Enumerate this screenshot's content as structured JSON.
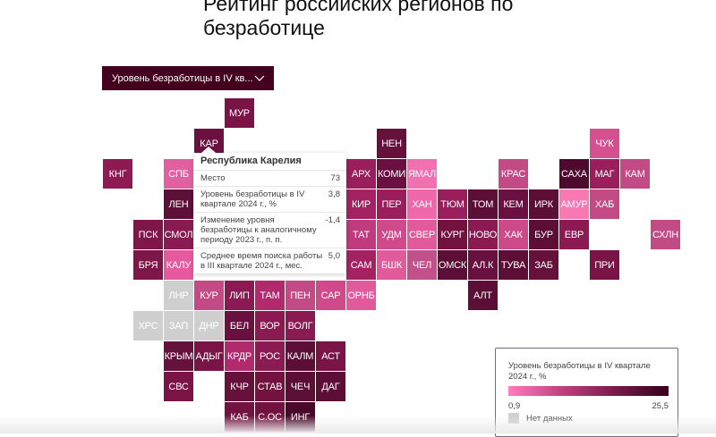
{
  "title": "Рейтинг российских регионов по безработице",
  "dropdown": {
    "label": "Уровень безработицы в IV кв...",
    "icon": "chevron-down-icon"
  },
  "tooltip": {
    "region": "Республика Карелия",
    "rows": [
      {
        "label": "Место",
        "value": "73"
      },
      {
        "label": "Уровень безработицы в IV квартале 2024 г., %",
        "value": "3,8"
      },
      {
        "label": "Изменение уровня безработицы к аналогичному периоду 2023 г., п. п.",
        "value": "-1,4"
      },
      {
        "label": "Среднее время поиска работы в III квартале 2024 г.,  мес.",
        "value": "5,0"
      }
    ]
  },
  "legend": {
    "title": "Уровень безработицы в IV квартале 2024 г., %",
    "min": "0,9",
    "max": "25,5",
    "no_data": "Нет данных",
    "color_low": "#ff7dbf",
    "color_high": "#33001a",
    "color_no_data": "#cfcfcf"
  },
  "tiles": [
    {
      "label": "МУР",
      "color": "#7a1447"
    },
    {
      "label": "КАР",
      "color": "#6b1040"
    },
    {
      "label": "КНГ",
      "color": "#8e1a54"
    },
    {
      "label": "СПБ",
      "color": "#e060a0"
    },
    {
      "label": "ЛЕН",
      "color": "#5e0f38"
    },
    {
      "label": "СМОЛ",
      "color": "#8a1a52"
    },
    {
      "label": "КАЛУ",
      "color": "#e55a9e"
    },
    {
      "label": "ПСК",
      "color": "#7e164a"
    },
    {
      "label": "БРЯ",
      "color": "#7e164a"
    },
    {
      "label": "НЕН",
      "color": "#66103c"
    },
    {
      "label": "КОМИ",
      "color": "#6a1040"
    },
    {
      "label": "ЯМАЛ",
      "color": "#f070b0"
    },
    {
      "label": "ПЕР",
      "color": "#9a1e5c"
    },
    {
      "label": "ХАН",
      "color": "#f068ac"
    },
    {
      "label": "ТЮМ",
      "color": "#9a1e5c"
    },
    {
      "label": "ТОМ",
      "color": "#5c0e36"
    },
    {
      "label": "КЕМ",
      "color": "#6a1040"
    },
    {
      "label": "ИРК",
      "color": "#5c0e36"
    },
    {
      "label": "АМУР",
      "color": "#f878b4"
    },
    {
      "label": "ХАБ",
      "color": "#c24b85"
    },
    {
      "label": "КРАС",
      "color": "#c24b85"
    },
    {
      "label": "САХА",
      "color": "#4d0a2e"
    },
    {
      "label": "МАГ",
      "color": "#9a1e5c"
    },
    {
      "label": "КАМ",
      "color": "#c24b85"
    },
    {
      "label": "ЧУК",
      "color": "#d4508f"
    },
    {
      "label": "УДМ",
      "color": "#d04a8b"
    },
    {
      "label": "СВЕР",
      "color": "#e05a9c"
    },
    {
      "label": "КУРГ",
      "color": "#74123f"
    },
    {
      "label": "НОВО",
      "color": "#8c1a52"
    },
    {
      "label": "ХАК",
      "color": "#cc4a8a"
    },
    {
      "label": "БУР",
      "color": "#5c0e36"
    },
    {
      "label": "ЕВР",
      "color": "#8c1a52"
    },
    {
      "label": "СХЛН",
      "color": "#c24b85"
    },
    {
      "label": "БШК",
      "color": "#e05a9c"
    },
    {
      "label": "ЧЕЛ",
      "color": "#c2508a"
    },
    {
      "label": "ОМСК",
      "color": "#5c0e36"
    },
    {
      "label": "АЛ.К",
      "color": "#6a1040"
    },
    {
      "label": "ТУВА",
      "color": "#5c0e36"
    },
    {
      "label": "ЗАБ",
      "color": "#66103c"
    },
    {
      "label": "ПРИ",
      "color": "#7a1447"
    },
    {
      "label": "АЛТ",
      "color": "#5c0e36"
    },
    {
      "label": "АРХ",
      "color": "#9a1e5c"
    },
    {
      "label": "КИР",
      "color": "#a52262"
    },
    {
      "label": "ТАТ",
      "color": "#c03a7e"
    },
    {
      "label": "САМ",
      "color": "#a52262"
    },
    {
      "label": "ЛНР",
      "color": "#cfcfcf"
    },
    {
      "label": "КУР",
      "color": "#c24b85"
    },
    {
      "label": "ЛИП",
      "color": "#8c1a52"
    },
    {
      "label": "ТАМ",
      "color": "#b02a6c"
    },
    {
      "label": "ПЕН",
      "color": "#c24b85"
    },
    {
      "label": "САР",
      "color": "#d04a8b"
    },
    {
      "label": "ОРНБ",
      "color": "#e05a9c"
    },
    {
      "label": "ХРС",
      "color": "#cfcfcf"
    },
    {
      "label": "ЗАП",
      "color": "#cfcfcf"
    },
    {
      "label": "ДНР",
      "color": "#cfcfcf"
    },
    {
      "label": "БЕЛ",
      "color": "#6a1040"
    },
    {
      "label": "ВОР",
      "color": "#8c1a52"
    },
    {
      "label": "ВОЛГ",
      "color": "#8c1a52"
    },
    {
      "label": "КРЫМ",
      "color": "#66103c"
    },
    {
      "label": "АДЫГ",
      "color": "#7a1447"
    },
    {
      "label": "КРДР",
      "color": "#b02a6c"
    },
    {
      "label": "РОС",
      "color": "#8c1a52"
    },
    {
      "label": "КАЛМ",
      "color": "#5c0e36"
    },
    {
      "label": "АСТ",
      "color": "#7a1447"
    },
    {
      "label": "СВС",
      "color": "#7a1447"
    },
    {
      "label": "КЧР",
      "color": "#66103c"
    },
    {
      "label": "СТАВ",
      "color": "#74123f"
    },
    {
      "label": "ЧЕЧ",
      "color": "#5c0e36"
    },
    {
      "label": "ДАГ",
      "color": "#5c0e36"
    },
    {
      "label": "КАБ",
      "color": "#74123f"
    },
    {
      "label": "С.ОС",
      "color": "#74123f"
    },
    {
      "label": "ИНГ",
      "color": "#4a0828"
    }
  ]
}
